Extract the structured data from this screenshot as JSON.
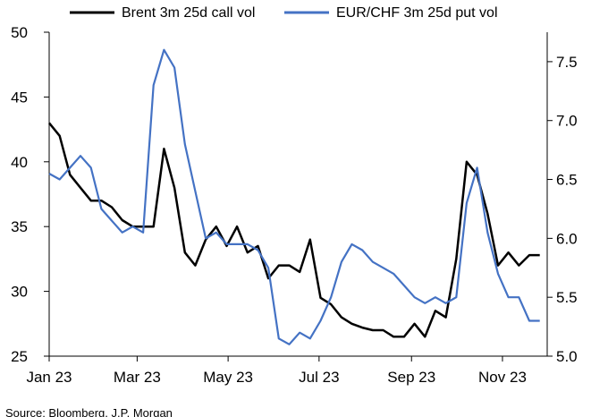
{
  "chart_data": {
    "type": "line",
    "x": [
      "2023-01-01",
      "2023-01-08",
      "2023-01-15",
      "2023-01-22",
      "2023-01-29",
      "2023-02-05",
      "2023-02-12",
      "2023-02-19",
      "2023-02-26",
      "2023-03-05",
      "2023-03-12",
      "2023-03-19",
      "2023-03-26",
      "2023-04-02",
      "2023-04-09",
      "2023-04-16",
      "2023-04-23",
      "2023-04-30",
      "2023-05-07",
      "2023-05-14",
      "2023-05-21",
      "2023-05-28",
      "2023-06-04",
      "2023-06-11",
      "2023-06-18",
      "2023-06-25",
      "2023-07-02",
      "2023-07-09",
      "2023-07-16",
      "2023-07-23",
      "2023-07-30",
      "2023-08-06",
      "2023-08-13",
      "2023-08-20",
      "2023-08-27",
      "2023-09-03",
      "2023-09-10",
      "2023-09-17",
      "2023-09-24",
      "2023-10-01",
      "2023-10-08",
      "2023-10-15",
      "2023-10-22",
      "2023-10-29",
      "2023-11-05",
      "2023-11-12",
      "2023-11-19",
      "2023-11-26"
    ],
    "series": [
      {
        "name": "Brent 3m 25d call vol",
        "axis": "left",
        "color": "#000000",
        "values": [
          43,
          42,
          39,
          38,
          37,
          37,
          36.5,
          35.5,
          35,
          35,
          35,
          41,
          38,
          33,
          32,
          34,
          35,
          33.5,
          35,
          33,
          33.5,
          31,
          32,
          32,
          31.5,
          34,
          29.5,
          29,
          28,
          27.5,
          27.2,
          27,
          27,
          26.5,
          26.5,
          27.5,
          26.5,
          28.5,
          28,
          32.5,
          40,
          39,
          36,
          32,
          33,
          32,
          32.8,
          32.8
        ]
      },
      {
        "name": "EUR/CHF 3m 25d put vol",
        "axis": "right",
        "color": "#4472C4",
        "values": [
          6.55,
          6.5,
          6.6,
          6.7,
          6.6,
          6.25,
          6.15,
          6.05,
          6.1,
          6.05,
          7.3,
          7.6,
          7.45,
          6.8,
          6.4,
          6.0,
          6.05,
          5.95,
          5.95,
          5.95,
          5.9,
          5.75,
          5.15,
          5.1,
          5.2,
          5.15,
          5.3,
          5.5,
          5.8,
          5.95,
          5.9,
          5.8,
          5.75,
          5.7,
          5.6,
          5.5,
          5.45,
          5.5,
          5.45,
          5.5,
          6.3,
          6.6,
          6.05,
          5.7,
          5.5,
          5.5,
          5.3,
          5.3
        ]
      }
    ],
    "x_ticks": [
      "Jan 23",
      "Mar 23",
      "May 23",
      "Jul 23",
      "Sep 23",
      "Nov 23"
    ],
    "y_left": {
      "lim": [
        25,
        50
      ],
      "ticks": [
        "25",
        "30",
        "35",
        "40",
        "45",
        "50"
      ]
    },
    "y_right": {
      "lim": [
        5.0,
        7.75
      ],
      "ticks": [
        "5.0",
        "5.5",
        "6.0",
        "6.5",
        "7.0",
        "7.5"
      ]
    },
    "grid": false,
    "legend": "top"
  },
  "source_note": "Source: Bloomberg, J.P. Morgan"
}
